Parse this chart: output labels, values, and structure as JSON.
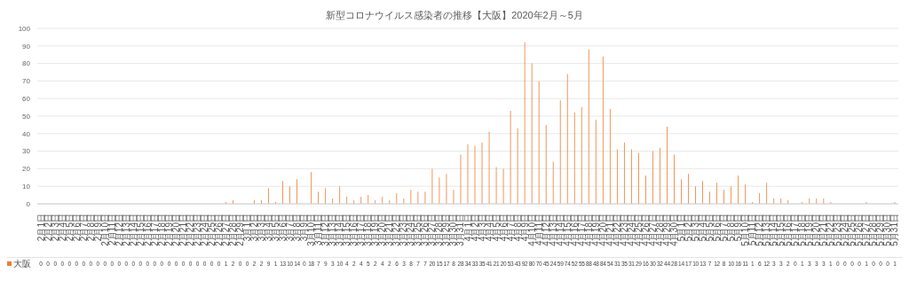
{
  "chart_data": {
    "type": "bar",
    "title": "新型コロナウイルス感染者の推移【大阪】2020年2月～5月",
    "categories": [
      "2月1日",
      "2月2日",
      "2月3日",
      "2月4日",
      "2月5日",
      "2月6日",
      "2月7日",
      "2月8日",
      "2月9日",
      "2月10日",
      "2月11日",
      "2月12日",
      "2月13日",
      "2月14日",
      "2月15日",
      "2月16日",
      "2月17日",
      "2月18日",
      "2月19日",
      "2月20日",
      "2月21日",
      "2月22日",
      "2月23日",
      "2月24日",
      "2月25日",
      "2月26日",
      "2月27日",
      "2月28日",
      "2月29日",
      "3月1日",
      "3月2日",
      "3月3日",
      "3月4日",
      "3月5日",
      "3月6日",
      "3月7日",
      "3月8日",
      "3月9日",
      "3月10日",
      "3月11日",
      "3月12日",
      "3月13日",
      "3月14日",
      "3月15日",
      "3月16日",
      "3月17日",
      "3月18日",
      "3月19日",
      "3月20日",
      "3月21日",
      "3月22日",
      "3月23日",
      "3月24日",
      "3月25日",
      "3月26日",
      "3月27日",
      "3月28日",
      "3月29日",
      "3月30日",
      "3月31日",
      "4月1日",
      "4月2日",
      "4月3日",
      "4月4日",
      "4月5日",
      "4月6日",
      "4月7日",
      "4月8日",
      "4月9日",
      "4月10日",
      "4月11日",
      "4月12日",
      "4月13日",
      "4月14日",
      "4月15日",
      "4月16日",
      "4月17日",
      "4月18日",
      "4月19日",
      "4月20日",
      "4月21日",
      "4月22日",
      "4月23日",
      "4月24日",
      "4月25日",
      "4月26日",
      "4月27日",
      "4月28日",
      "4月29日",
      "4月30日",
      "5月1日",
      "5月2日",
      "5月3日",
      "5月4日",
      "5月5日",
      "5月6日",
      "5月7日",
      "5月8日",
      "5月9日",
      "5月10日",
      "5月11日",
      "5月12日",
      "5月13日",
      "5月14日",
      "5月15日",
      "5月16日",
      "5月17日",
      "5月18日",
      "5月19日",
      "5月20日",
      "5月21日",
      "5月22日",
      "5月23日",
      "5月24日",
      "5月25日",
      "5月26日",
      "5月27日",
      "5月28日",
      "5月29日",
      "5月30日",
      "5月31日"
    ],
    "series": [
      {
        "name": "大阪",
        "color": "#ed7d31",
        "values": [
          0,
          0,
          0,
          0,
          0,
          0,
          0,
          0,
          0,
          0,
          0,
          0,
          0,
          0,
          0,
          0,
          0,
          0,
          0,
          0,
          0,
          0,
          0,
          0,
          0,
          0,
          1,
          2,
          0,
          0,
          2,
          2,
          9,
          1,
          13,
          10,
          14,
          0,
          18,
          7,
          9,
          3,
          10,
          4,
          2,
          4,
          5,
          2,
          4,
          2,
          6,
          3,
          8,
          7,
          7,
          20,
          15,
          17,
          8,
          28,
          34,
          33,
          35,
          41,
          21,
          20,
          53,
          43,
          92,
          80,
          70,
          45,
          24,
          59,
          74,
          52,
          55,
          88,
          48,
          84,
          54,
          31,
          35,
          31,
          29,
          16,
          30,
          32,
          44,
          28,
          14,
          17,
          10,
          13,
          7,
          12,
          8,
          10,
          16,
          11,
          1,
          6,
          12,
          3,
          3,
          2,
          0,
          1,
          3,
          3,
          3,
          1,
          0,
          0,
          0,
          0,
          1,
          0,
          0,
          0,
          1
        ]
      }
    ],
    "ylim": [
      0,
      100
    ],
    "yticks": [
      0,
      10,
      20,
      30,
      40,
      50,
      60,
      70,
      80,
      90,
      100
    ],
    "grid": "y",
    "legend": "bottom left",
    "data_labels": true
  }
}
